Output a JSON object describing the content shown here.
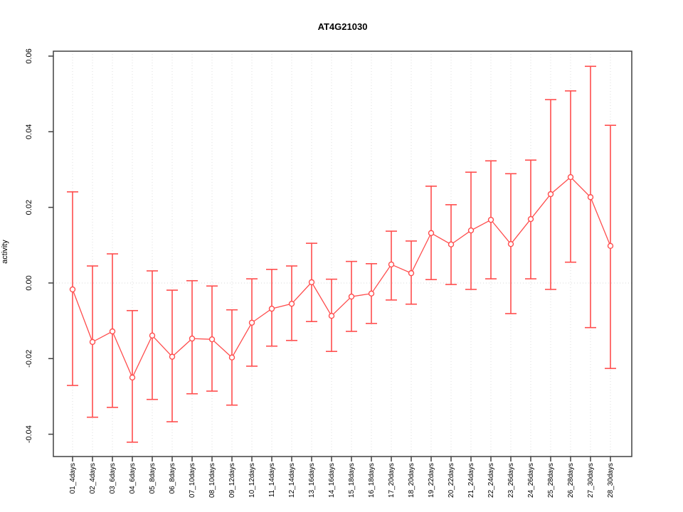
{
  "figure": {
    "title": "AT4G21030",
    "ylabel": "activity"
  },
  "chart_data": {
    "type": "line",
    "title": "AT4G21030",
    "xlabel": "",
    "ylabel": "activity",
    "legend_position": "none",
    "grid": "vertical-dotted-plus-zero-line",
    "categories": [
      "01_4days",
      "02_4days",
      "03_6days",
      "04_6days",
      "05_8days",
      "06_8days",
      "07_10days",
      "08_10days",
      "09_12days",
      "10_12days",
      "11_14days",
      "12_14days",
      "13_16days",
      "14_16days",
      "15_18days",
      "16_18days",
      "17_20days",
      "18_20days",
      "19_22days",
      "20_22days",
      "21_24days",
      "22_24days",
      "23_26days",
      "24_26days",
      "25_28days",
      "26_28days",
      "27_30days",
      "28_30days"
    ],
    "series": [
      {
        "name": "activity",
        "marker": "open-circle",
        "values": [
          -0.0017,
          -0.0156,
          -0.0128,
          -0.025,
          -0.0139,
          -0.0195,
          -0.0147,
          -0.0149,
          -0.0197,
          -0.0105,
          -0.0068,
          -0.0055,
          0.0002,
          -0.0087,
          -0.0036,
          -0.0028,
          0.0049,
          0.0026,
          0.0132,
          0.0102,
          0.0139,
          0.0167,
          0.0103,
          0.0169,
          0.0235,
          0.028,
          0.0227,
          0.0098
        ],
        "error_upper": [
          0.0241,
          0.0045,
          0.0077,
          -0.0073,
          0.0032,
          -0.0019,
          0.0006,
          -0.0008,
          -0.0071,
          0.0011,
          0.0036,
          0.0045,
          0.0105,
          0.001,
          0.0057,
          0.0051,
          0.0137,
          0.0111,
          0.0256,
          0.0207,
          0.0293,
          0.0323,
          0.0289,
          0.0325,
          0.0485,
          0.0508,
          0.0573,
          0.0417
        ],
        "error_lower": [
          -0.0271,
          -0.0355,
          -0.0329,
          -0.0421,
          -0.0308,
          -0.0367,
          -0.0293,
          -0.0286,
          -0.0323,
          -0.022,
          -0.0167,
          -0.0152,
          -0.0102,
          -0.0181,
          -0.0128,
          -0.0107,
          -0.0045,
          -0.0056,
          0.0009,
          -0.0004,
          -0.0017,
          0.0011,
          -0.0081,
          0.0011,
          -0.0017,
          0.0055,
          -0.0118,
          -0.0226
        ]
      }
    ],
    "y_axis": {
      "tick_labels": [
        "-0.04",
        "-0.02",
        "0.00",
        "0.02",
        "0.04",
        "0.06"
      ],
      "tick_values": [
        -0.04,
        -0.02,
        0.0,
        0.02,
        0.04,
        0.06
      ],
      "min": -0.0459,
      "max": 0.0613
    },
    "colors": {
      "series": "#ff4d4d",
      "grid": "#dedede",
      "zero_line": "#d9d9d9",
      "axis": "#404040",
      "text": "#000000"
    }
  }
}
